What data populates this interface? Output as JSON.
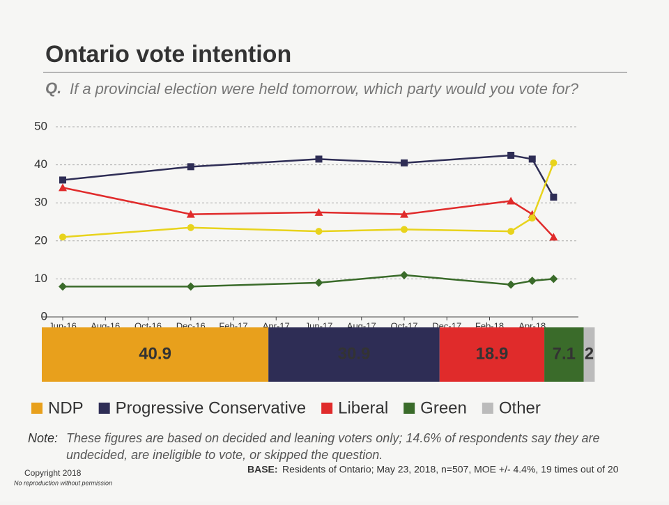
{
  "title": "Ontario vote intention",
  "question_prefix": "Q.",
  "question": "If a provincial election were held tomorrow, which party would you vote for?",
  "note_prefix": "Note:",
  "note": "These figures are based on decided and leaning voters only; 14.6% of respondents say they are undecided, are ineligible to vote, or skipped the question.",
  "base_prefix": "BASE:",
  "base": "Residents of Ontario; May 23, 2018, n=507, MOE +/- 4.4%, 19 times out of 20",
  "copyright": "Copyright 2018",
  "reproduction": "No reproduction without permission",
  "chart_data": [
    {
      "type": "line",
      "x": [
        "Jun-16",
        "Dec-16",
        "Jun-17",
        "Oct-17",
        "Mar-18",
        "Apr-18",
        "May-18"
      ],
      "xlim": [
        "Jun-16",
        "Jun-18"
      ],
      "xticks": [
        "Jun-16",
        "Aug-16",
        "Oct-16",
        "Dec-16",
        "Feb-17",
        "Apr-17",
        "Jun-17",
        "Aug-17",
        "Oct-17",
        "Dec-17",
        "Feb-18",
        "Apr-18"
      ],
      "ylim": [
        0,
        50
      ],
      "yticks": [
        0,
        10,
        20,
        30,
        40,
        50
      ],
      "grid": true,
      "series": [
        {
          "name": "Progressive Conservative",
          "color": "#2e2d55",
          "marker": "square",
          "values": [
            36,
            39.5,
            41.5,
            40.5,
            42.5,
            41.5,
            31.5
          ]
        },
        {
          "name": "Liberal",
          "color": "#e02b2b",
          "marker": "triangle",
          "values": [
            34,
            27,
            27.5,
            27,
            30.5,
            27,
            21
          ]
        },
        {
          "name": "NDP",
          "color": "#e8d31c",
          "marker": "circle",
          "values": [
            21,
            23.5,
            22.5,
            23,
            22.5,
            26,
            40.5
          ]
        },
        {
          "name": "Green",
          "color": "#3a6b2a",
          "marker": "diamond",
          "values": [
            8,
            8,
            9,
            11,
            8.5,
            9.5,
            10
          ]
        }
      ]
    },
    {
      "type": "stacked_bar",
      "xlim": [
        0,
        100
      ],
      "series": [
        {
          "name": "NDP",
          "color": "#e8a01c",
          "values": [
            40.9
          ]
        },
        {
          "name": "Progressive Conservative",
          "color": "#2e2d55",
          "values": [
            30.9
          ]
        },
        {
          "name": "Liberal",
          "color": "#e02b2b",
          "values": [
            18.9
          ]
        },
        {
          "name": "Green",
          "color": "#3a6b2a",
          "values": [
            7.1
          ]
        },
        {
          "name": "Other",
          "color": "#bbbbbb",
          "values": [
            2
          ]
        }
      ]
    }
  ]
}
